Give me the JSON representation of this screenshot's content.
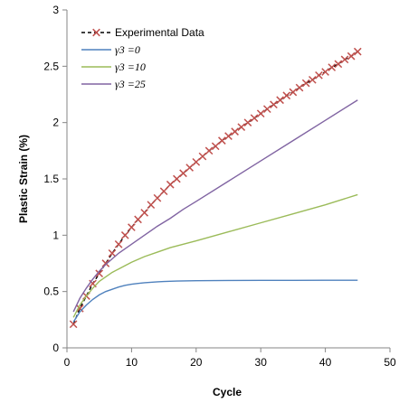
{
  "chart_data": {
    "type": "line",
    "title": "",
    "xlabel": "Cycle",
    "ylabel": "Plastic Strain (%)",
    "xlim": [
      0,
      50
    ],
    "ylim": [
      0,
      3
    ],
    "x_ticks": [
      "0",
      "10",
      "20",
      "30",
      "40",
      "50"
    ],
    "y_ticks": [
      "0",
      "0.5",
      "1",
      "1.5",
      "2",
      "2.5",
      "3"
    ],
    "grid": false,
    "legend_position": "top-left",
    "series": [
      {
        "name": "Experimental Data",
        "color": "#000000",
        "marker_color": "#c0504d",
        "line_style": "dashed",
        "marker": "x",
        "x": [
          1,
          2,
          3,
          4,
          5,
          6,
          7,
          8,
          9,
          10,
          11,
          12,
          13,
          14,
          15,
          16,
          17,
          18,
          19,
          20,
          21,
          22,
          23,
          24,
          25,
          26,
          27,
          28,
          29,
          30,
          31,
          32,
          33,
          34,
          35,
          36,
          37,
          38,
          39,
          40,
          41,
          42,
          43,
          44,
          45
        ],
        "values": [
          0.21,
          0.35,
          0.46,
          0.57,
          0.66,
          0.75,
          0.84,
          0.92,
          1.0,
          1.07,
          1.14,
          1.2,
          1.27,
          1.33,
          1.39,
          1.45,
          1.5,
          1.55,
          1.6,
          1.65,
          1.7,
          1.75,
          1.79,
          1.84,
          1.88,
          1.92,
          1.96,
          2.0,
          2.04,
          2.08,
          2.12,
          2.16,
          2.2,
          2.24,
          2.27,
          2.31,
          2.35,
          2.38,
          2.42,
          2.45,
          2.49,
          2.52,
          2.56,
          2.59,
          2.63
        ]
      },
      {
        "name": "γ3 =0",
        "color": "#4f81bd",
        "line_style": "solid",
        "x": [
          1,
          2,
          3,
          4,
          5,
          6,
          7,
          8,
          9,
          10,
          11,
          12,
          13,
          14,
          15,
          16,
          17,
          18,
          19,
          20,
          25,
          30,
          35,
          40,
          45
        ],
        "values": [
          0.23,
          0.32,
          0.38,
          0.43,
          0.47,
          0.5,
          0.52,
          0.54,
          0.555,
          0.565,
          0.572,
          0.578,
          0.582,
          0.586,
          0.589,
          0.591,
          0.593,
          0.594,
          0.595,
          0.596,
          0.598,
          0.599,
          0.599,
          0.6,
          0.6
        ]
      },
      {
        "name": "γ3 =10",
        "color": "#9bbb59",
        "line_style": "solid",
        "x": [
          1,
          2,
          3,
          4,
          5,
          6,
          7,
          8,
          9,
          10,
          12,
          14,
          16,
          18,
          20,
          25,
          30,
          35,
          40,
          45
        ],
        "values": [
          0.27,
          0.38,
          0.46,
          0.53,
          0.59,
          0.63,
          0.67,
          0.7,
          0.73,
          0.76,
          0.81,
          0.85,
          0.89,
          0.92,
          0.95,
          1.03,
          1.11,
          1.19,
          1.27,
          1.36
        ]
      },
      {
        "name": "γ3 =25",
        "color": "#8064a2",
        "line_style": "solid",
        "x": [
          1,
          2,
          3,
          4,
          5,
          6,
          7,
          8,
          9,
          10,
          12,
          14,
          16,
          18,
          20,
          25,
          30,
          35,
          40,
          45
        ],
        "values": [
          0.32,
          0.44,
          0.53,
          0.61,
          0.68,
          0.74,
          0.79,
          0.84,
          0.88,
          0.92,
          1.0,
          1.08,
          1.15,
          1.23,
          1.3,
          1.48,
          1.66,
          1.84,
          2.02,
          2.2
        ]
      }
    ]
  }
}
